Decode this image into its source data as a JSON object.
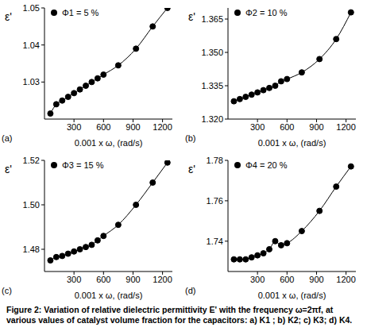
{
  "caption": "Figure 2: Variation of relative dielectric permittivity E' with the frequency ω=2πf, at various values of catalyst volume fraction for the capacitors: a) K1 ; b) K2; c) K3; d) K4.",
  "chart_data": [
    {
      "type": "line",
      "label": "(a)",
      "x_label": "0.001 x ω, (rad/s)",
      "y_label": "ε'",
      "x": [
        60,
        120,
        180,
        240,
        300,
        360,
        420,
        480,
        540,
        600,
        750,
        930,
        1100,
        1250
      ],
      "xlim": [
        0,
        1300
      ],
      "xticks": [
        300,
        600,
        900,
        1200
      ],
      "ylim": [
        1.02,
        1.05
      ],
      "yticks": [
        1.03,
        1.04,
        1.05
      ],
      "series": [
        {
          "name": "Φ1 = 5 %",
          "color": "#000000",
          "marker": "circle",
          "values": [
            1.0215,
            1.024,
            1.025,
            1.026,
            1.027,
            1.028,
            1.029,
            1.03,
            1.031,
            1.032,
            1.0345,
            1.039,
            1.045,
            1.05
          ]
        }
      ]
    },
    {
      "type": "line",
      "label": "(b)",
      "x_label": "0.001 x ω, (rad/s)",
      "y_label": "ε'",
      "x": [
        60,
        120,
        180,
        240,
        300,
        360,
        420,
        480,
        540,
        600,
        750,
        930,
        1100,
        1250
      ],
      "xlim": [
        0,
        1300
      ],
      "xticks": [
        300,
        600,
        900,
        1200
      ],
      "ylim": [
        1.32,
        1.37
      ],
      "yticks": [
        {
          "value": 1.32,
          "label": "1.320"
        },
        {
          "value": 1.335,
          "label": "1.335"
        },
        {
          "value": 1.35,
          "label": "1.350"
        },
        {
          "value": 1.365,
          "label": "1.365"
        }
      ],
      "series": [
        {
          "name": "Φ2 = 10 %",
          "color": "#000000",
          "marker": "circle",
          "values": [
            1.328,
            1.329,
            1.33,
            1.331,
            1.332,
            1.333,
            1.334,
            1.335,
            1.337,
            1.338,
            1.341,
            1.347,
            1.356,
            1.368
          ]
        }
      ]
    },
    {
      "type": "line",
      "label": "(c)",
      "x_label": "0.001 x ω, (rad/s)",
      "y_label": "ε'",
      "x": [
        60,
        120,
        180,
        240,
        300,
        360,
        420,
        480,
        540,
        600,
        750,
        930,
        1100,
        1250
      ],
      "xlim": [
        0,
        1300
      ],
      "xticks": [
        300,
        600,
        900,
        1200
      ],
      "ylim": [
        1.47,
        1.52
      ],
      "yticks": [
        1.48,
        {
          "value": 1.5,
          "label": "1.50"
        },
        1.52
      ],
      "series": [
        {
          "name": "Φ3 = 15 %",
          "color": "#000000",
          "marker": "circle",
          "values": [
            1.475,
            1.4765,
            1.477,
            1.478,
            1.479,
            1.48,
            1.481,
            1.482,
            1.484,
            1.486,
            1.491,
            1.5,
            1.51,
            1.519
          ]
        }
      ]
    },
    {
      "type": "line",
      "label": "(d)",
      "x_label": "0.001 x ω, (rad/s)",
      "y_label": "ε'",
      "x": [
        60,
        120,
        180,
        240,
        300,
        360,
        420,
        480,
        540,
        600,
        750,
        930,
        1100,
        1250
      ],
      "xlim": [
        0,
        1300
      ],
      "xticks": [
        300,
        600,
        900,
        1200
      ],
      "ylim": [
        1.725,
        1.78
      ],
      "yticks": [
        1.74,
        1.76,
        1.78
      ],
      "series": [
        {
          "name": "Φ4 = 20 %",
          "color": "#000000",
          "marker": "circle",
          "values": [
            1.731,
            1.731,
            1.731,
            1.732,
            1.733,
            1.734,
            1.736,
            1.74,
            1.738,
            1.739,
            1.745,
            1.755,
            1.767,
            1.777
          ]
        }
      ]
    }
  ]
}
